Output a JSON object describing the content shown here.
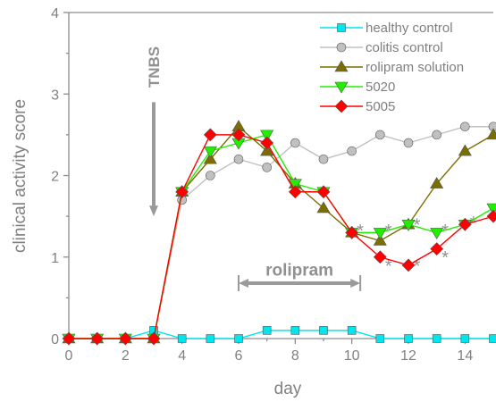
{
  "chart_data": {
    "type": "line",
    "title": "",
    "xlabel": "day",
    "ylabel": "clinical activity score",
    "xlim": [
      0,
      15
    ],
    "ylim": [
      0,
      4
    ],
    "x_ticks": [
      "0",
      "2",
      "4",
      "6",
      "8",
      "10",
      "12",
      "14"
    ],
    "y_ticks": [
      "0",
      "1",
      "2",
      "3",
      "4"
    ],
    "legend_position": "top-right",
    "series": [
      {
        "name": "healthy control",
        "color": "#00e5ee",
        "marker": "square",
        "points": [
          [
            0,
            0
          ],
          [
            1,
            0
          ],
          [
            2,
            0
          ],
          [
            3,
            0.1
          ],
          [
            4,
            0
          ],
          [
            5,
            0
          ],
          [
            6,
            0
          ],
          [
            7,
            0.1
          ],
          [
            8,
            0.1
          ],
          [
            9,
            0.1
          ],
          [
            10,
            0.1
          ],
          [
            11,
            0
          ],
          [
            12,
            0
          ],
          [
            13,
            0
          ],
          [
            14,
            0
          ],
          [
            15,
            0
          ]
        ]
      },
      {
        "name": "colitis control",
        "color": "#c0c0c0",
        "marker": "circle",
        "points": [
          [
            0,
            0
          ],
          [
            1,
            0
          ],
          [
            2,
            0
          ],
          [
            3,
            0
          ],
          [
            4,
            1.7
          ],
          [
            5,
            2.0
          ],
          [
            6,
            2.2
          ],
          [
            7,
            2.1
          ],
          [
            8,
            2.4
          ],
          [
            9,
            2.2
          ],
          [
            10,
            2.3
          ],
          [
            11,
            2.5
          ],
          [
            12,
            2.4
          ],
          [
            13,
            2.5
          ],
          [
            14,
            2.6
          ],
          [
            15,
            2.6
          ]
        ]
      },
      {
        "name": "rolipram solution",
        "color": "#7a6e00",
        "marker": "triangle-up",
        "points": [
          [
            0,
            0
          ],
          [
            1,
            0
          ],
          [
            2,
            0
          ],
          [
            3,
            0
          ],
          [
            4,
            1.8
          ],
          [
            5,
            2.2
          ],
          [
            6,
            2.6
          ],
          [
            7,
            2.3
          ],
          [
            8,
            1.9
          ],
          [
            9,
            1.6
          ],
          [
            10,
            1.3
          ],
          [
            11,
            1.2
          ],
          [
            12,
            1.4
          ],
          [
            13,
            1.9
          ],
          [
            14,
            2.3
          ],
          [
            15,
            2.5
          ]
        ]
      },
      {
        "name": "5020",
        "color": "#22ee00",
        "marker": "triangle-down",
        "points": [
          [
            0,
            0
          ],
          [
            1,
            0
          ],
          [
            2,
            0
          ],
          [
            3,
            0
          ],
          [
            4,
            1.8
          ],
          [
            5,
            2.3
          ],
          [
            6,
            2.4
          ],
          [
            7,
            2.5
          ],
          [
            8,
            1.9
          ],
          [
            9,
            1.8
          ],
          [
            10,
            1.3
          ],
          [
            11,
            1.3
          ],
          [
            12,
            1.4
          ],
          [
            13,
            1.3
          ],
          [
            14,
            1.4
          ],
          [
            15,
            1.6
          ]
        ]
      },
      {
        "name": "5005",
        "color": "#ff0000",
        "marker": "diamond",
        "points": [
          [
            0,
            0
          ],
          [
            1,
            0
          ],
          [
            2,
            0
          ],
          [
            3,
            0
          ],
          [
            4,
            1.8
          ],
          [
            5,
            2.5
          ],
          [
            6,
            2.5
          ],
          [
            7,
            2.4
          ],
          [
            8,
            1.8
          ],
          [
            9,
            1.8
          ],
          [
            10,
            1.3
          ],
          [
            11,
            1.0
          ],
          [
            12,
            0.9
          ],
          [
            13,
            1.1
          ],
          [
            14,
            1.4
          ],
          [
            15,
            1.5
          ]
        ]
      }
    ],
    "annotations": {
      "tnbs": {
        "label": "TNBS",
        "day": 3,
        "arrow_from": 2.9,
        "arrow_to": 1.5
      },
      "rolipram": {
        "label": "rolipram",
        "from_day": 6,
        "to_day": 10.3,
        "y": 0.68,
        "label_y": 0.85
      },
      "significance": {
        "symbol": "*",
        "marks": [
          [
            10.3,
            1.38
          ],
          [
            11.3,
            1.38
          ],
          [
            12.3,
            1.45
          ],
          [
            13.3,
            1.38
          ],
          [
            14.3,
            1.48
          ],
          [
            15.2,
            1.62
          ],
          [
            11.3,
            0.95
          ],
          [
            12.3,
            0.95
          ],
          [
            13.3,
            1.05
          ]
        ]
      }
    }
  }
}
